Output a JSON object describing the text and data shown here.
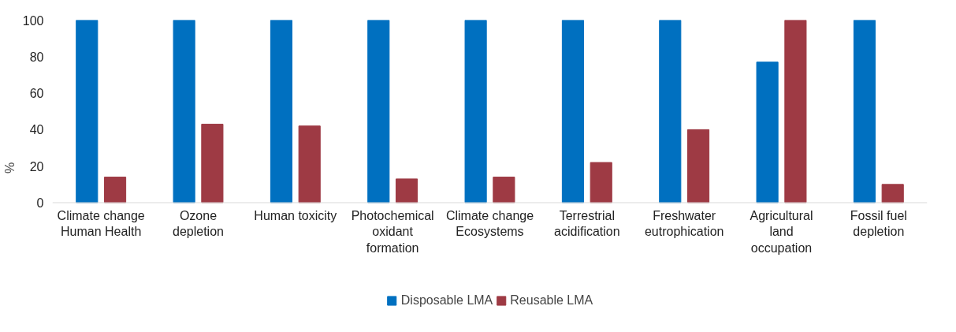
{
  "chart_data": {
    "type": "bar",
    "ylabel": "%",
    "categories": [
      "Climate change Human Health",
      "Ozone depletion",
      "Human toxicity",
      "Photochemical oxidant formation",
      "Climate change Ecosystems",
      "Terrestrial acidification",
      "Freshwater eutrophication",
      "Agricultural land occupation",
      "Fossil fuel depletion"
    ],
    "series": [
      {
        "name": "Disposable LMA",
        "color": "#0070c0",
        "values": [
          100,
          100,
          100,
          100,
          100,
          100,
          100,
          77,
          100
        ]
      },
      {
        "name": "Reusable LMA",
        "color": "#9e3a44",
        "values": [
          14,
          43,
          42,
          13,
          14,
          22,
          40,
          100,
          10
        ]
      }
    ],
    "ylim": [
      0,
      100
    ],
    "yticks": [
      0,
      20,
      40,
      60,
      80,
      100
    ],
    "grid": false,
    "legend": "bottom"
  }
}
